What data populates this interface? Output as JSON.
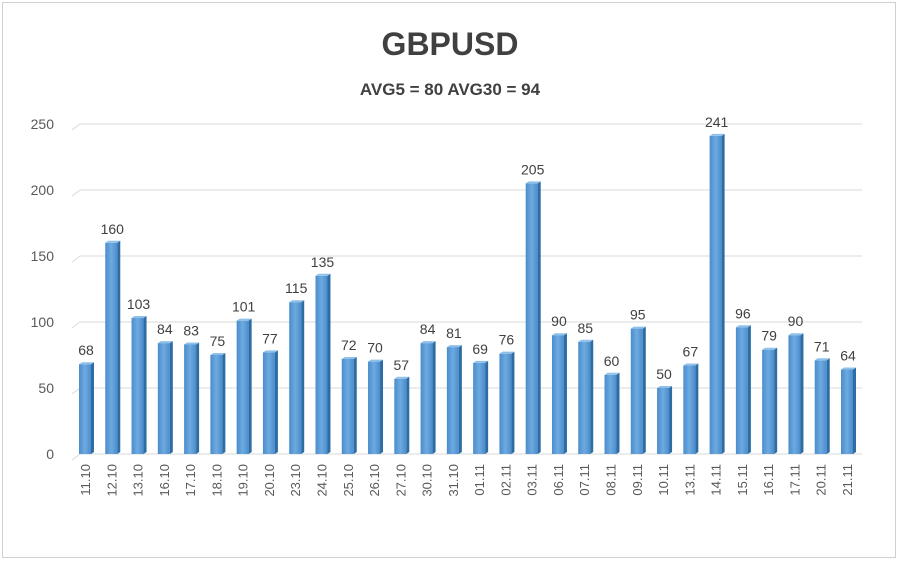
{
  "chart_data": {
    "type": "bar",
    "title": "GBPUSD",
    "subtitle": "AVG5 = 80 AVG30 = 94",
    "xlabel": "",
    "ylabel": "",
    "ylim": [
      0,
      250
    ],
    "yticks": [
      0,
      50,
      100,
      150,
      200,
      250
    ],
    "grid": true,
    "categories": [
      "11.10",
      "12.10",
      "13.10",
      "16.10",
      "17.10",
      "18.10",
      "19.10",
      "20.10",
      "23.10",
      "24.10",
      "25.10",
      "26.10",
      "27.10",
      "30.10",
      "31.10",
      "01.11",
      "02.11",
      "03.11",
      "06.11",
      "07.11",
      "08.11",
      "09.11",
      "10.11",
      "13.11",
      "14.11",
      "15.11",
      "16.11",
      "17.11",
      "20.11",
      "21.11"
    ],
    "values": [
      68,
      160,
      103,
      84,
      83,
      75,
      101,
      77,
      115,
      135,
      72,
      70,
      57,
      84,
      81,
      69,
      76,
      205,
      90,
      85,
      60,
      95,
      50,
      67,
      241,
      96,
      79,
      90,
      71,
      64
    ],
    "bar_color": "#5b9bd5"
  }
}
